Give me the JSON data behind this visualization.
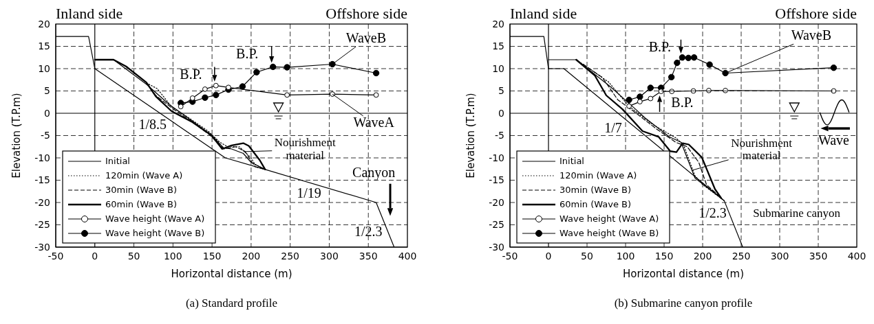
{
  "chart_data": [
    {
      "type": "line",
      "title": "(a) Standard profile",
      "xlabel": "Horizontal distance (m)",
      "ylabel": "Elevation (T.P.m)",
      "xlim": [
        -50,
        400
      ],
      "xticks": [
        -50,
        0,
        50,
        100,
        150,
        200,
        250,
        300,
        350,
        400
      ],
      "ylim": [
        -30,
        20
      ],
      "yticks": [
        -30,
        -25,
        -20,
        -15,
        -10,
        -5,
        0,
        5,
        10,
        15,
        20
      ],
      "grid": true,
      "legend": "bottom left",
      "annotations": [
        "Inland side",
        "Offshore side",
        {
          "text": "B.P.",
          "x": 155,
          "y": 6.2
        },
        {
          "text": "B.P.",
          "x": 228,
          "y": 10.4
        },
        {
          "text": "WaveB",
          "x": 304,
          "y": 11
        },
        {
          "text": "WaveA",
          "x": 304,
          "y": 4.3
        },
        "1/8.5",
        {
          "text": "Nourishment material",
          "x": 190,
          "y": -8.6
        },
        "Canyon",
        "1/19",
        "1/2.3"
      ],
      "series": [
        {
          "color": "#000000",
          "line_style": "solid",
          "x": [
            -50,
            -8,
            0,
            167,
            218,
            360,
            383
          ],
          "values": [
            17.2,
            17.2,
            10,
            -10,
            -12.6,
            -20,
            -30
          ]
        },
        {
          "name": "Initial",
          "color": "#000000",
          "line_style": "solid",
          "x": [
            0,
            24,
            66,
            95,
            115,
            150,
            165,
            175,
            190,
            200,
            218
          ],
          "values": [
            12,
            12,
            6.5,
            2,
            -0.5,
            -5,
            -7.8,
            -8,
            -9,
            -11,
            -12.6
          ]
        },
        {
          "name": "120min (Wave A)",
          "color": "#000000",
          "line_style": "dotted",
          "x": [
            66,
            80,
            98,
            120,
            145,
            160,
            170,
            185,
            200,
            205,
            218
          ],
          "values": [
            6.8,
            5.5,
            1.5,
            -1,
            -4,
            -6.5,
            -7.5,
            -7.5,
            -10,
            -11.5,
            -12.6
          ]
        },
        {
          "name": "30min (Wave B)",
          "color": "#000000",
          "line_style": "dashed",
          "x": [
            66,
            78,
            100,
            125,
            148,
            165,
            180,
            192,
            205,
            218
          ],
          "values": [
            6.8,
            4,
            1,
            -2,
            -5,
            -8,
            -7.5,
            -8.5,
            -12,
            -12.6
          ]
        },
        {
          "name": "60min (Wave B)",
          "color": "#000000",
          "line_style": "solid",
          "x": [
            0,
            24,
            40,
            66,
            78,
            98,
            125,
            149,
            163,
            175,
            190,
            197,
            211,
            218
          ],
          "values": [
            12,
            12,
            10.5,
            6.9,
            3.8,
            0.5,
            -2,
            -4.9,
            -8,
            -7.2,
            -6.7,
            -7.3,
            -10.5,
            -12.6
          ]
        },
        {
          "name": "Wave height (Wave A)",
          "color": "#000000",
          "line_style": "solid",
          "marker": "circle",
          "x": [
            110,
            125,
            141,
            155,
            171,
            246,
            304,
            360
          ],
          "values": [
            1.5,
            3.4,
            5.4,
            6.2,
            5.8,
            4.1,
            4.3,
            4.1
          ]
        },
        {
          "name": "Wave height (Wave B)",
          "color": "#000000",
          "line_style": "solid",
          "marker": "circle",
          "x": [
            110,
            125,
            141,
            155,
            171,
            189,
            207,
            228,
            246,
            304,
            360
          ],
          "values": [
            2.3,
            2.6,
            3.5,
            4.1,
            5.3,
            6,
            9.2,
            10.4,
            10.3,
            11,
            9
          ]
        }
      ]
    },
    {
      "type": "line",
      "title": "(b) Submarine canyon profile",
      "xlabel": "Horizontal distance (m)",
      "ylabel": "Elevation (T.P.m)",
      "xlim": [
        -50,
        400
      ],
      "xticks": [
        -50,
        0,
        50,
        100,
        150,
        200,
        250,
        300,
        350,
        400
      ],
      "ylim": [
        -30,
        20
      ],
      "yticks": [
        -30,
        -25,
        -20,
        -15,
        -10,
        -5,
        0,
        5,
        10,
        15,
        20
      ],
      "grid": true,
      "legend": "bottom left",
      "annotations": [
        "Inland side",
        "Offshore side",
        {
          "text": "B.P.",
          "x": 173.6,
          "y": 12.5
        },
        {
          "text": "B.P.",
          "x": 146,
          "y": 4.9
        },
        {
          "text": "WaveB",
          "x": 229.5,
          "y": 9
        },
        "1/7",
        {
          "text": "Nourishment material",
          "x": 186,
          "y": -12.8
        },
        "Wave",
        "1/2.3",
        "Submarine canyon"
      ],
      "series": [
        {
          "color": "#000000",
          "line_style": "solid",
          "x": [
            -50,
            -6,
            0,
            20,
            228,
            252
          ],
          "values": [
            17.2,
            17.2,
            10,
            10,
            -19.6,
            -30
          ]
        },
        {
          "name": "Initial",
          "color": "#000000",
          "line_style": "solid",
          "x": [
            0,
            36,
            80,
            113,
            125,
            157,
            172,
            190,
            228
          ],
          "values": [
            12,
            12,
            6,
            0.9,
            -1,
            -5.3,
            -6.5,
            -14.5,
            -19.6
          ]
        },
        {
          "name": "120min (Wave A)",
          "color": "#000000",
          "line_style": "dotted",
          "x": [
            36,
            78,
            95,
            105,
            135,
            165,
            175,
            190,
            200,
            228
          ],
          "values": [
            12,
            7,
            3.5,
            1.5,
            -2.5,
            -5.5,
            -7,
            -14,
            -16,
            -19.6
          ]
        },
        {
          "name": "30min (Wave B)",
          "color": "#000000",
          "line_style": "dashed",
          "x": [
            45,
            70,
            90,
            110,
            140,
            165,
            180,
            195,
            205,
            226
          ],
          "values": [
            11,
            8,
            3,
            0.5,
            -3.5,
            -6.5,
            -7.5,
            -11,
            -16,
            -19.3
          ]
        },
        {
          "name": "60min (Wave B)",
          "color": "#000000",
          "line_style": "solid",
          "x": [
            36,
            60,
            75,
            96,
            122,
            143,
            158,
            166,
            174,
            182,
            199,
            216,
            224
          ],
          "values": [
            12,
            8.5,
            4,
            0.9,
            -4,
            -5.3,
            -8.5,
            -8.7,
            -6.7,
            -7,
            -9.9,
            -17,
            -19
          ]
        },
        {
          "name": "Wave height (Wave A)",
          "color": "#000000",
          "line_style": "solid",
          "marker": "circle",
          "x": [
            104.5,
            118.6,
            132.4,
            146,
            160,
            188,
            208,
            229.5,
            370
          ],
          "values": [
            1.6,
            2.6,
            3.3,
            4.9,
            4.9,
            5,
            5.1,
            5.1,
            5
          ]
        },
        {
          "name": "Wave height (Wave B)",
          "color": "#000000",
          "line_style": "solid",
          "marker": "circle",
          "x": [
            104.5,
            118.6,
            132.4,
            146,
            159.5,
            166.8,
            173.6,
            181.5,
            188.9,
            209,
            229.5,
            370
          ],
          "values": [
            3,
            3.7,
            5.7,
            5.7,
            8.1,
            11.3,
            12.5,
            12.4,
            12.5,
            10.9,
            9,
            10.2
          ]
        }
      ]
    }
  ]
}
